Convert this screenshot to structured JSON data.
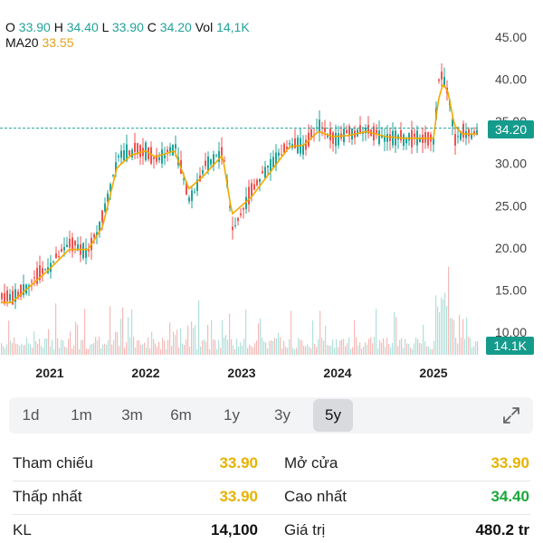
{
  "ohlc": {
    "o_label": "O",
    "o": "33.90",
    "h_label": "H",
    "h": "34.40",
    "l_label": "L",
    "l": "33.90",
    "c_label": "C",
    "c": "34.20",
    "vol_label": "Vol",
    "vol": "14,1K"
  },
  "ma": {
    "label": "MA20",
    "value": "33.55"
  },
  "price_tag": "34.20",
  "volume_tag": "14.1K",
  "colors": {
    "up": "#22a39a",
    "down": "#ef5350",
    "ma": "#f2a900",
    "tag": "#159b8c",
    "yellow": "#e6b200",
    "green": "#1aa83a"
  },
  "timeframes": [
    {
      "label": "1d"
    },
    {
      "label": "1m"
    },
    {
      "label": "3m"
    },
    {
      "label": "6m"
    },
    {
      "label": "1y"
    },
    {
      "label": "3y"
    },
    {
      "label": "5y",
      "active": true
    }
  ],
  "expand_icon": "expand-icon",
  "stats": {
    "reference_label": "Tham chiếu",
    "reference": "33.90",
    "open_label": "Mở cửa",
    "open": "33.90",
    "low_label": "Thấp nhất",
    "low": "33.90",
    "high_label": "Cao nhất",
    "high": "34.40",
    "volume_label": "KL",
    "volume": "14,100",
    "value_label": "Giá trị",
    "value": "480.2 tr"
  },
  "chart_data": {
    "type": "line",
    "series_kind": "candlestick price with MA20 and volume",
    "y_ticks": [
      "10.00",
      "15.00",
      "20.00",
      "25.00",
      "30.00",
      "35.00",
      "40.00",
      "45.00"
    ],
    "ylim": [
      10,
      45
    ],
    "x_ticks": [
      "2021",
      "2022",
      "2023",
      "2024",
      "2025"
    ],
    "last_price": 34.2,
    "price_line": 34.2,
    "x_years": [
      2020.6,
      2020.85,
      2021.0,
      2021.2,
      2021.4,
      2021.55,
      2021.7,
      2021.85,
      2022.0,
      2022.1,
      2022.3,
      2022.45,
      2022.6,
      2022.8,
      2022.9,
      2023.1,
      2023.3,
      2023.5,
      2023.65,
      2023.8,
      2023.95,
      2024.1,
      2024.3,
      2024.5,
      2024.7,
      2024.9,
      2025.0,
      2025.05,
      2025.1,
      2025.15,
      2025.22,
      2025.3,
      2025.4,
      2025.5
    ],
    "close": [
      14.0,
      16.5,
      18.0,
      20.5,
      19.5,
      24.0,
      31.0,
      31.5,
      31.5,
      30.5,
      32.0,
      25.5,
      29.5,
      31.5,
      22.0,
      27.0,
      30.0,
      32.5,
      32.0,
      34.5,
      33.0,
      33.5,
      34.0,
      33.0,
      33.0,
      33.0,
      33.0,
      40.5,
      40.0,
      38.0,
      32.5,
      34.0,
      33.5,
      34.2
    ],
    "ma20": [
      13.5,
      16.0,
      17.5,
      19.8,
      19.8,
      22.5,
      29.5,
      31.0,
      31.5,
      30.8,
      31.5,
      27.0,
      28.5,
      31.0,
      24.0,
      26.0,
      29.0,
      32.0,
      32.2,
      33.8,
      33.2,
      33.3,
      33.8,
      33.2,
      33.0,
      33.0,
      33.0,
      37.5,
      39.5,
      38.5,
      34.5,
      33.5,
      33.5,
      33.55
    ]
  }
}
